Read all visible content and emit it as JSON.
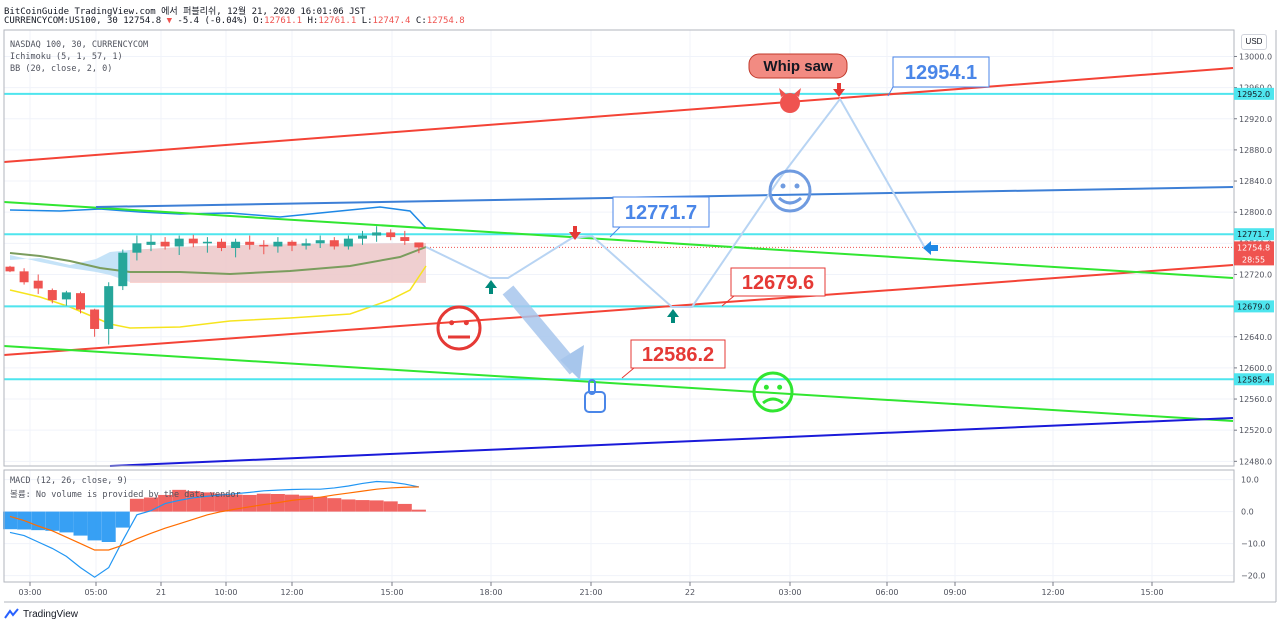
{
  "header": {
    "line1": "BitCoinGuide TradingView.com 에서 퍼블리쉬, 12월 21, 2020 16:01:06 JST",
    "symbol_label": "CURRENCYCOM:US100, 30",
    "last": "12754.8",
    "change": "-5.4 (-0.04%)",
    "o_label": "O:",
    "o_val": "12761.1",
    "h_label": "H:",
    "h_val": "12761.1",
    "l_label": "L:",
    "l_val": "12747.4",
    "c_label": "C:",
    "c_val": "12754.8"
  },
  "indicators": {
    "symbol": "NASDAQ 100, 30, CURRENCYCOM",
    "ichimoku": "Ichimoku (5, 1, 57, 1)",
    "bb": "BB (20, close, 2, 0)",
    "macd": "MACD (12, 26, close, 9)",
    "volume_note": "볼륨: No volume is provided by the data vendor"
  },
  "currency_button": "USD",
  "brand": "TradingView",
  "chart_data": [
    {
      "type": "line",
      "name_visible": "NASDAQ 100, 30, CURRENCYCOM",
      "x_ticks": [
        "03:00",
        "05:00",
        "21",
        "10:00",
        "12:00",
        "15:00",
        "18:00",
        "21:00",
        "22",
        "03:00",
        "06:00",
        "09:00",
        "12:00",
        "15:00"
      ],
      "y_ticks": [
        13000.0,
        12960.0,
        12920.0,
        12880.0,
        12840.0,
        12800.0,
        12760.0,
        12720.0,
        12680.0,
        12640.0,
        12600.0,
        12560.0,
        12520.0,
        12480.0
      ],
      "y_tick_labels": [
        "13000.0",
        "12960.0",
        "12920.0",
        "12880.0",
        "12840.0",
        "12800.0",
        "12760.0",
        "12720.0",
        "12680.0",
        "12640.0",
        "12600.0",
        "12560.0",
        "12520.0",
        "12480.0"
      ],
      "ylim": [
        12474,
        13034
      ],
      "horizontal_levels": [
        {
          "value": 12952.0,
          "label": "12952.0"
        },
        {
          "value": 12771.7,
          "label": "12771.7"
        },
        {
          "value": 12679.0,
          "label": "12679.0"
        },
        {
          "value": 12585.4,
          "label": "12585.4"
        }
      ],
      "last_price": {
        "value": 12754.8,
        "label": "12754.8",
        "countdown": "28:55"
      },
      "candles": [
        [
          12730,
          12731,
          12723,
          12724
        ],
        [
          12724,
          12728,
          12707,
          12710
        ],
        [
          12712,
          12720,
          12695,
          12702
        ],
        [
          12700,
          12702,
          12683,
          12687
        ],
        [
          12688,
          12699,
          12680,
          12697
        ],
        [
          12696,
          12698,
          12670,
          12675
        ],
        [
          12675,
          12676,
          12640,
          12650
        ],
        [
          12650,
          12710,
          12630,
          12705
        ],
        [
          12705,
          12752,
          12700,
          12748
        ],
        [
          12748,
          12770,
          12738,
          12760
        ],
        [
          12758,
          12771,
          12750,
          12762
        ],
        [
          12762,
          12768,
          12752,
          12756
        ],
        [
          12756,
          12770,
          12745,
          12766
        ],
        [
          12766,
          12771,
          12755,
          12760
        ],
        [
          12760,
          12768,
          12748,
          12762
        ],
        [
          12762,
          12766,
          12750,
          12754
        ],
        [
          12754,
          12766,
          12742,
          12762
        ],
        [
          12762,
          12770,
          12752,
          12758
        ],
        [
          12758,
          12764,
          12746,
          12756
        ],
        [
          12756,
          12768,
          12748,
          12762
        ],
        [
          12762,
          12764,
          12750,
          12757
        ],
        [
          12757,
          12766,
          12752,
          12760
        ],
        [
          12760,
          12770,
          12754,
          12764
        ],
        [
          12764,
          12768,
          12752,
          12756
        ],
        [
          12756,
          12770,
          12752,
          12766
        ],
        [
          12766,
          12776,
          12758,
          12770
        ],
        [
          12770,
          12782,
          12762,
          12774
        ],
        [
          12774,
          12778,
          12764,
          12768
        ],
        [
          12768,
          12776,
          12758,
          12763
        ],
        [
          12761.1,
          12761.1,
          12747.4,
          12754.8
        ]
      ],
      "annotations": [
        {
          "text": "12954.1",
          "price": 12954.1,
          "color": "#4a86e8"
        },
        {
          "text": "12771.7",
          "price": 12771.7,
          "color": "#4a86e8"
        },
        {
          "text": "12679.6",
          "price": 12679.6,
          "color": "#e53935"
        },
        {
          "text": "12586.2",
          "price": 12586.2,
          "color": "#e53935"
        },
        {
          "text": "Whip saw",
          "color": "#131722"
        }
      ]
    },
    {
      "type": "bar",
      "name_visible": "MACD (12, 26, close, 9)",
      "y_tick_labels": [
        "10.0",
        "0.0",
        "−10.0",
        "−20.0"
      ],
      "y_ticks": [
        10,
        0,
        -10,
        -20
      ],
      "ylim": [
        -22,
        13
      ],
      "histogram": [
        -5.5,
        -5.6,
        -5.8,
        -6.0,
        -6.5,
        -7.5,
        -9.0,
        -9.5,
        -5.0,
        4.0,
        4.4,
        5.2,
        6.8,
        6.4,
        6.0,
        5.6,
        5.3,
        5.2,
        5.6,
        5.5,
        5.3,
        5.0,
        4.6,
        4.2,
        3.8,
        3.6,
        3.5,
        3.2,
        2.4,
        0.6
      ],
      "macd_line": [
        -6.5,
        -7.5,
        -9.5,
        -11.5,
        -14.0,
        -17.5,
        -20.5,
        -17.5,
        -9.0,
        -1.0,
        0.3,
        2.5,
        3.5,
        4.3,
        4.8,
        5.2,
        5.6,
        6.0,
        6.5,
        6.7,
        6.9,
        7.0,
        7.0,
        7.4,
        8.0,
        8.8,
        9.4,
        9.2,
        8.6,
        7.7
      ],
      "signal_line": [
        -1.5,
        -2.8,
        -4.5,
        -6.0,
        -8.0,
        -10.0,
        -12.0,
        -12.0,
        -10.5,
        -8.5,
        -6.8,
        -5.2,
        -3.8,
        -2.4,
        -1.0,
        0.0,
        0.8,
        1.5,
        2.2,
        2.8,
        3.5,
        4.0,
        4.5,
        5.2,
        5.8,
        6.4,
        7.0,
        7.4,
        7.6,
        7.7
      ]
    }
  ]
}
